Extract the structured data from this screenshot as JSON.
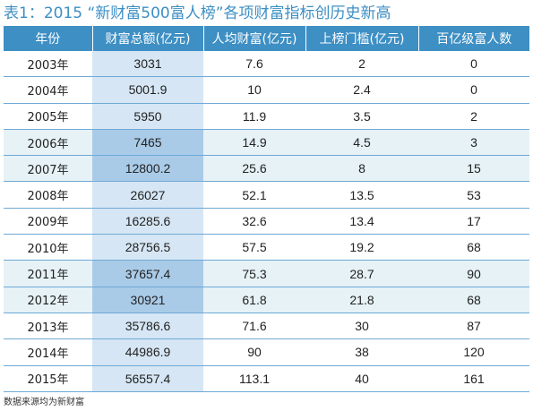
{
  "title": "表1：2015 “新财富500富人榜”各项财富指标创历史新高",
  "headers": [
    "年份",
    "财富总额(亿元)",
    "人均财富(亿元)",
    "上榜门槛(亿元)",
    "百亿级富人数"
  ],
  "rows": [
    {
      "year": "2003年",
      "total": "3031",
      "avg": "7.6",
      "threshold": "2",
      "count": "0"
    },
    {
      "year": "2004年",
      "total": "5001.9",
      "avg": "10",
      "threshold": "2.4",
      "count": "0"
    },
    {
      "year": "2005年",
      "total": "5950",
      "avg": "11.9",
      "threshold": "3.5",
      "count": "2"
    },
    {
      "year": "2006年",
      "total": "7465",
      "avg": "14.9",
      "threshold": "4.5",
      "count": "3"
    },
    {
      "year": "2007年",
      "total": "12800.2",
      "avg": "25.6",
      "threshold": "8",
      "count": "15"
    },
    {
      "year": "2008年",
      "total": "26027",
      "avg": "52.1",
      "threshold": "13.5",
      "count": "53"
    },
    {
      "year": "2009年",
      "total": "16285.6",
      "avg": "32.6",
      "threshold": "13.4",
      "count": "17"
    },
    {
      "year": "2010年",
      "total": "28756.5",
      "avg": "57.5",
      "threshold": "19.2",
      "count": "68"
    },
    {
      "year": "2011年",
      "total": "37657.4",
      "avg": "75.3",
      "threshold": "28.7",
      "count": "90"
    },
    {
      "year": "2012年",
      "total": "30921",
      "avg": "61.8",
      "threshold": "21.8",
      "count": "68"
    },
    {
      "year": "2013年",
      "total": "35786.6",
      "avg": "71.6",
      "threshold": "30",
      "count": "87"
    },
    {
      "year": "2014年",
      "total": "44986.9",
      "avg": "90",
      "threshold": "38",
      "count": "120"
    },
    {
      "year": "2015年",
      "total": "56557.4",
      "avg": "113.1",
      "threshold": "40",
      "count": "161"
    }
  ],
  "source": "数据来源均为新财富",
  "colors": {
    "accent": "#3d8fc4",
    "highlight_row": "#e6f2f6",
    "wealth_column": "#d6e6f4",
    "wealth_column_highlight": "#a9cbe7"
  }
}
